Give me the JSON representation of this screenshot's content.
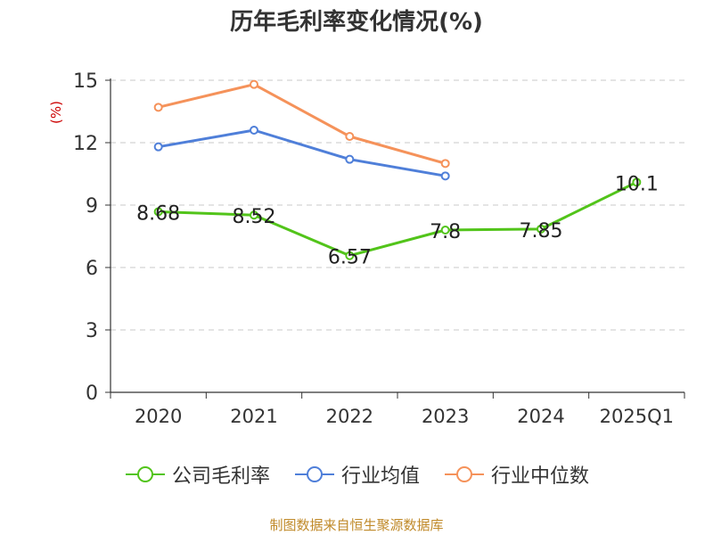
{
  "chart_data": {
    "type": "line",
    "title": "历年毛利率变化情况(%)",
    "ylabel": "(%)",
    "xlabel": "",
    "categories": [
      "2020",
      "2021",
      "2022",
      "2023",
      "2024",
      "2025Q1"
    ],
    "ylim": [
      0,
      15
    ],
    "yticks": [
      0,
      3,
      6,
      9,
      12,
      15
    ],
    "grid": true,
    "legend_position": "bottom",
    "series": [
      {
        "name": "公司毛利率",
        "color": "#52c41a",
        "values": [
          8.68,
          8.52,
          6.57,
          7.8,
          7.85,
          10.1
        ],
        "labels": [
          "8.68",
          "8.52",
          "6.57",
          "7.8",
          "7.85",
          "10.1"
        ]
      },
      {
        "name": "行业均值",
        "color": "#4f7fd9",
        "values": [
          11.8,
          12.6,
          11.2,
          10.4,
          null,
          null
        ]
      },
      {
        "name": "行业中位数",
        "color": "#f5925a",
        "values": [
          13.7,
          14.8,
          12.3,
          11.0,
          null,
          null
        ]
      }
    ]
  },
  "source": "制图数据来自恒生聚源数据库",
  "colors": {
    "ylabel": "#cc0000",
    "grid": "#c8c8c8",
    "axis": "#333333"
  }
}
